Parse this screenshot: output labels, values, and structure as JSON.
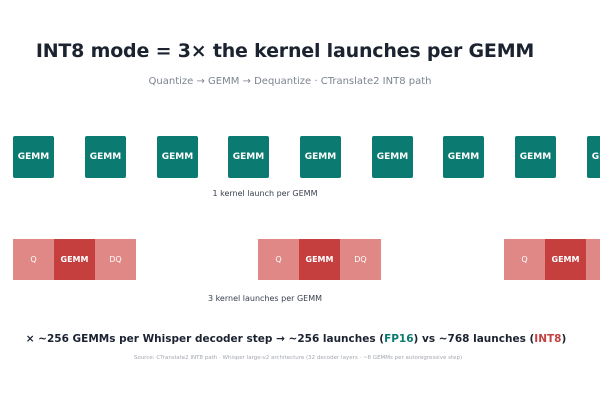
{
  "title": "INT8 mode = 3× the kernel launches per GEMM",
  "subtitle": "Quantize → GEMM → Dequantize · CTranslate2 INT8 path",
  "fp16_row": {
    "box_label": "GEMM",
    "caption": "1 kernel launch per GEMM",
    "color": "#0b7a70"
  },
  "int8_row": {
    "labels": {
      "q": "Q",
      "gemm": "GEMM",
      "dq": "DQ"
    },
    "caption": "3 kernel launches per GEMM",
    "colors": {
      "q_dq": "#e08886",
      "gemm": "#c63f3f"
    }
  },
  "summary": {
    "prefix": "× ~256 GEMMs per Whisper decoder step → ~256 launches (",
    "fp16": "FP16",
    "middle": ") vs ~768 launches (",
    "int8": "INT8",
    "suffix": ")"
  },
  "source": "Source: CTranslate2 INT8 path · Whisper large-v2 architecture (32 decoder layers · ~8 GEMMs per autoregressive step)"
}
